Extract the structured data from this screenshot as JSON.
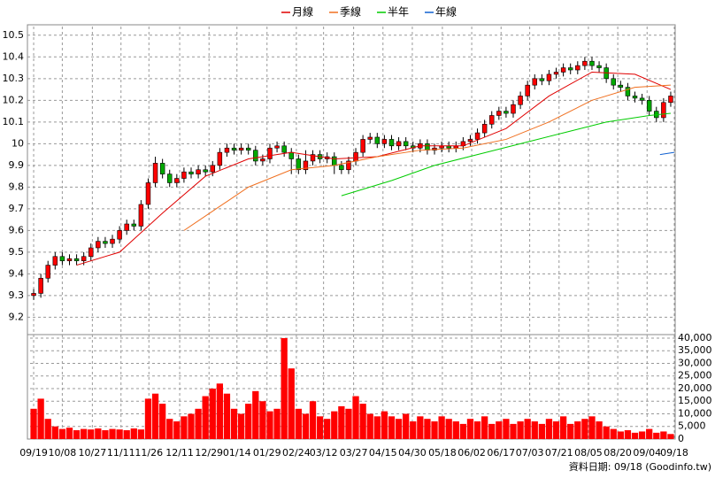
{
  "chart_data": [
    {
      "type": "candlestick",
      "x": [
        0,
        1,
        2,
        3,
        4,
        5,
        6,
        7,
        8,
        9,
        10,
        11,
        12,
        13,
        14,
        15,
        16,
        17,
        18,
        19,
        20,
        21,
        22,
        23,
        24,
        25,
        26,
        27,
        28,
        29,
        30,
        31,
        32,
        33,
        34,
        35,
        36,
        37,
        38,
        39,
        40,
        41,
        42,
        43,
        44,
        45,
        46,
        47,
        48,
        49,
        50,
        51,
        52,
        53,
        54,
        55,
        56,
        57,
        58,
        59,
        60,
        61,
        62,
        63,
        64,
        65,
        66,
        67,
        68,
        69,
        70,
        71,
        72,
        73,
        74,
        75,
        76,
        77,
        78,
        79,
        80,
        81,
        82,
        83,
        84,
        85,
        86,
        87,
        88,
        89
      ],
      "open": [
        9.3,
        9.31,
        9.38,
        9.44,
        9.48,
        9.46,
        9.47,
        9.46,
        9.48,
        9.52,
        9.55,
        9.54,
        9.56,
        9.6,
        9.63,
        9.62,
        9.72,
        9.82,
        9.91,
        9.86,
        9.82,
        9.84,
        9.87,
        9.86,
        9.88,
        9.87,
        9.9,
        9.96,
        9.98,
        9.97,
        9.98,
        9.97,
        9.92,
        9.93,
        9.98,
        9.99,
        9.96,
        9.93,
        9.88,
        9.92,
        9.95,
        9.93,
        9.94,
        9.9,
        9.88,
        9.92,
        9.96,
        10.02,
        10.03,
        10.0,
        10.02,
        9.99,
        10.01,
        9.99,
        9.98,
        10.0,
        9.97,
        9.98,
        9.99,
        9.98,
        9.99,
        10.01,
        10.02,
        10.05,
        10.09,
        10.13,
        10.15,
        10.14,
        10.18,
        10.22,
        10.27,
        10.3,
        10.29,
        10.32,
        10.33,
        10.35,
        10.34,
        10.36,
        10.38,
        10.36,
        10.35,
        10.3,
        10.27,
        10.26,
        10.22,
        10.21,
        10.2,
        10.15,
        10.12,
        10.19
      ],
      "high": [
        9.33,
        9.4,
        9.46,
        9.5,
        9.5,
        9.49,
        9.49,
        9.5,
        9.54,
        9.57,
        9.57,
        9.58,
        9.62,
        9.65,
        9.65,
        9.74,
        9.84,
        9.94,
        9.93,
        9.88,
        9.86,
        9.89,
        9.89,
        9.9,
        9.9,
        9.92,
        9.98,
        10.0,
        10.0,
        10.0,
        10.0,
        9.99,
        9.95,
        10.0,
        10.01,
        10.01,
        9.98,
        9.95,
        9.97,
        9.97,
        9.97,
        9.96,
        9.96,
        9.92,
        9.94,
        9.98,
        10.04,
        10.05,
        10.05,
        10.04,
        10.04,
        10.03,
        10.03,
        10.01,
        10.02,
        10.02,
        10.0,
        10.01,
        10.01,
        10.01,
        10.03,
        10.04,
        10.07,
        10.11,
        10.15,
        10.17,
        10.17,
        10.2,
        10.24,
        10.29,
        10.32,
        10.32,
        10.34,
        10.35,
        10.37,
        10.37,
        10.38,
        10.4,
        10.4,
        10.38,
        10.37,
        10.32,
        10.29,
        10.28,
        10.24,
        10.23,
        10.22,
        10.17,
        10.21,
        10.24
      ],
      "low": [
        9.28,
        9.29,
        9.36,
        9.42,
        9.44,
        9.44,
        9.44,
        9.44,
        9.46,
        9.5,
        9.52,
        9.52,
        9.54,
        9.58,
        9.6,
        9.6,
        9.7,
        9.8,
        9.84,
        9.8,
        9.8,
        9.82,
        9.84,
        9.84,
        9.85,
        9.85,
        9.88,
        9.94,
        9.95,
        9.95,
        9.95,
        9.9,
        9.9,
        9.91,
        9.96,
        9.94,
        9.86,
        9.86,
        9.86,
        9.9,
        9.91,
        9.91,
        9.86,
        9.86,
        9.86,
        9.9,
        9.94,
        10.0,
        9.98,
        9.98,
        9.97,
        9.97,
        9.97,
        9.96,
        9.96,
        9.95,
        9.95,
        9.96,
        9.96,
        9.96,
        9.97,
        9.99,
        10.0,
        10.03,
        10.07,
        10.11,
        10.12,
        10.12,
        10.16,
        10.2,
        10.25,
        10.27,
        10.27,
        10.3,
        10.31,
        10.32,
        10.32,
        10.34,
        10.34,
        10.33,
        10.28,
        10.25,
        10.24,
        10.2,
        10.19,
        10.18,
        10.13,
        10.1,
        10.1,
        10.17
      ],
      "close": [
        9.31,
        9.38,
        9.44,
        9.48,
        9.46,
        9.47,
        9.46,
        9.48,
        9.52,
        9.55,
        9.54,
        9.56,
        9.6,
        9.63,
        9.62,
        9.72,
        9.82,
        9.91,
        9.86,
        9.82,
        9.84,
        9.87,
        9.86,
        9.88,
        9.87,
        9.9,
        9.96,
        9.98,
        9.97,
        9.98,
        9.97,
        9.92,
        9.93,
        9.98,
        9.99,
        9.96,
        9.93,
        9.88,
        9.92,
        9.95,
        9.93,
        9.94,
        9.9,
        9.88,
        9.92,
        9.96,
        10.02,
        10.03,
        10.0,
        10.02,
        9.99,
        10.01,
        9.99,
        9.98,
        10.0,
        9.97,
        9.98,
        9.99,
        9.98,
        9.99,
        10.01,
        10.02,
        10.05,
        10.09,
        10.13,
        10.15,
        10.14,
        10.18,
        10.22,
        10.27,
        10.3,
        10.29,
        10.32,
        10.33,
        10.35,
        10.34,
        10.36,
        10.38,
        10.36,
        10.35,
        10.3,
        10.27,
        10.26,
        10.22,
        10.21,
        10.2,
        10.15,
        10.12,
        10.19,
        10.22
      ],
      "up_color": "#ff0000",
      "down_color": "#00aa00",
      "series": [
        {
          "name": "月線",
          "color": "#e00000",
          "x": [
            6,
            12,
            18,
            24,
            30,
            36,
            42,
            48,
            54,
            60,
            66,
            72,
            78,
            84,
            89
          ],
          "values": [
            9.44,
            9.5,
            9.68,
            9.85,
            9.93,
            9.96,
            9.93,
            9.94,
            9.99,
            9.99,
            10.07,
            10.22,
            10.33,
            10.32,
            10.25
          ]
        },
        {
          "name": "季線",
          "color": "#f07020",
          "x": [
            21,
            30,
            36,
            42,
            48,
            54,
            60,
            66,
            72,
            78,
            84,
            89
          ],
          "values": [
            9.6,
            9.8,
            9.88,
            9.9,
            9.94,
            9.97,
            9.98,
            10.02,
            10.1,
            10.2,
            10.26,
            10.27
          ]
        },
        {
          "name": "半年",
          "color": "#00cc00",
          "x": [
            43,
            50,
            56,
            62,
            68,
            74,
            80,
            86,
            89
          ],
          "values": [
            9.76,
            9.83,
            9.9,
            9.95,
            10.0,
            10.05,
            10.1,
            10.13,
            10.14
          ]
        },
        {
          "name": "年線",
          "color": "#1060d0",
          "x": [
            87.5,
            89.5
          ],
          "values": [
            9.95,
            9.96
          ]
        }
      ],
      "xlim": [
        -0.5,
        89.5
      ],
      "ylim": [
        9.12,
        10.54
      ],
      "yticks": [
        9.2,
        9.3,
        9.4,
        9.5,
        9.6,
        9.7,
        9.8,
        9.9,
        10,
        10.1,
        10.2,
        10.3,
        10.4,
        10.5
      ],
      "grid": true
    },
    {
      "type": "bar",
      "x": [
        0,
        1,
        2,
        3,
        4,
        5,
        6,
        7,
        8,
        9,
        10,
        11,
        12,
        13,
        14,
        15,
        16,
        17,
        18,
        19,
        20,
        21,
        22,
        23,
        24,
        25,
        26,
        27,
        28,
        29,
        30,
        31,
        32,
        33,
        34,
        35,
        36,
        37,
        38,
        39,
        40,
        41,
        42,
        43,
        44,
        45,
        46,
        47,
        48,
        49,
        50,
        51,
        52,
        53,
        54,
        55,
        56,
        57,
        58,
        59,
        60,
        61,
        62,
        63,
        64,
        65,
        66,
        67,
        68,
        69,
        70,
        71,
        72,
        73,
        74,
        75,
        76,
        77,
        78,
        79,
        80,
        81,
        82,
        83,
        84,
        85,
        86,
        87,
        88,
        89
      ],
      "values": [
        12000,
        16000,
        8000,
        5000,
        4000,
        4500,
        3500,
        4000,
        3800,
        4200,
        3500,
        4000,
        3800,
        3500,
        4200,
        3800,
        16000,
        18000,
        14000,
        8000,
        7000,
        9000,
        10000,
        12000,
        17000,
        20000,
        22000,
        18000,
        12000,
        10000,
        14000,
        19000,
        15000,
        11000,
        12000,
        40000,
        28000,
        12000,
        10000,
        15000,
        9000,
        8000,
        11000,
        13000,
        12000,
        17000,
        14000,
        10000,
        9000,
        11000,
        9000,
        8000,
        10000,
        7000,
        9000,
        8000,
        7000,
        9000,
        8000,
        7000,
        6000,
        8000,
        7000,
        9000,
        6000,
        7000,
        8000,
        6000,
        7000,
        8000,
        7000,
        6000,
        8000,
        7000,
        9000,
        6000,
        7000,
        8000,
        9000,
        7000,
        5000,
        4000,
        3000,
        3500,
        2500,
        3000,
        4000,
        2500,
        3000,
        2000
      ],
      "color": "#ff0000",
      "xlim": [
        -0.5,
        89.5
      ],
      "xticks": [
        {
          "value": 0,
          "label": "09/19"
        },
        {
          "value": 4,
          "label": "10/08"
        },
        {
          "value": 8.2,
          "label": "10/27"
        },
        {
          "value": 12.2,
          "label": "11/11"
        },
        {
          "value": 16.1,
          "label": "11/26"
        },
        {
          "value": 20.4,
          "label": "12/11"
        },
        {
          "value": 24.5,
          "label": "12/29"
        },
        {
          "value": 28.4,
          "label": "01/14"
        },
        {
          "value": 32.6,
          "label": "01/29"
        },
        {
          "value": 36.7,
          "label": "02/24"
        },
        {
          "value": 40.5,
          "label": "03/12"
        },
        {
          "value": 44.7,
          "label": "03/27"
        },
        {
          "value": 48.8,
          "label": "04/15"
        },
        {
          "value": 52.9,
          "label": "04/30"
        },
        {
          "value": 57.1,
          "label": "05/18"
        },
        {
          "value": 61.2,
          "label": "06/02"
        },
        {
          "value": 65.3,
          "label": "06/17"
        },
        {
          "value": 69.3,
          "label": "07/03"
        },
        {
          "value": 73.4,
          "label": "07/21"
        },
        {
          "value": 77.5,
          "label": "08/05"
        },
        {
          "value": 81.6,
          "label": "08/20"
        },
        {
          "value": 85.7,
          "label": "09/04"
        },
        {
          "value": 89.5,
          "label": "09/18"
        }
      ],
      "ylim": [
        0,
        41400
      ],
      "yticks": [
        0,
        {
          "value": 5000,
          "label": "5,000"
        },
        {
          "value": 10000,
          "label": "10,000"
        },
        {
          "value": 15000,
          "label": "15,000"
        },
        {
          "value": 20000,
          "label": "20,000"
        },
        {
          "value": 25000,
          "label": "25,000"
        },
        {
          "value": 30000,
          "label": "30,000"
        },
        {
          "value": 35000,
          "label": "35,000"
        },
        {
          "value": 40000,
          "label": "40,000"
        }
      ],
      "grid": true
    }
  ],
  "footer": "資料日期: 09/18  (Goodinfo.tw)"
}
